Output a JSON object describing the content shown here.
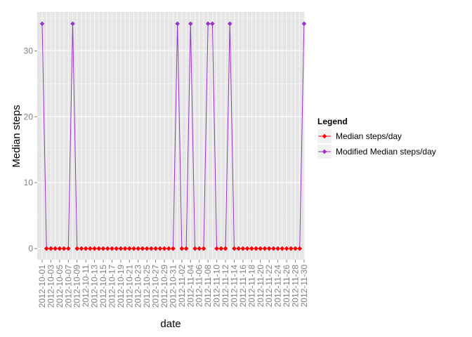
{
  "chart_data": {
    "type": "line",
    "xlabel": "date",
    "ylabel": "Median steps",
    "ylim": [
      -1.7,
      35.9
    ],
    "y_ticks": [
      0,
      10,
      20,
      30
    ],
    "x": [
      "2012-10-01",
      "2012-10-02",
      "2012-10-03",
      "2012-10-04",
      "2012-10-05",
      "2012-10-06",
      "2012-10-07",
      "2012-10-08",
      "2012-10-09",
      "2012-10-10",
      "2012-10-11",
      "2012-10-12",
      "2012-10-13",
      "2012-10-14",
      "2012-10-15",
      "2012-10-16",
      "2012-10-17",
      "2012-10-18",
      "2012-10-19",
      "2012-10-20",
      "2012-10-21",
      "2012-10-22",
      "2012-10-23",
      "2012-10-24",
      "2012-10-25",
      "2012-10-26",
      "2012-10-27",
      "2012-10-28",
      "2012-10-29",
      "2012-10-30",
      "2012-10-31",
      "2012-11-01",
      "2012-11-02",
      "2012-11-03",
      "2012-11-04",
      "2012-11-05",
      "2012-11-06",
      "2012-11-07",
      "2012-11-08",
      "2012-11-09",
      "2012-11-10",
      "2012-11-11",
      "2012-11-12",
      "2012-11-13",
      "2012-11-14",
      "2012-11-15",
      "2012-11-16",
      "2012-11-17",
      "2012-11-18",
      "2012-11-19",
      "2012-11-20",
      "2012-11-21",
      "2012-11-22",
      "2012-11-23",
      "2012-11-24",
      "2012-11-25",
      "2012-11-26",
      "2012-11-27",
      "2012-11-28",
      "2012-11-29",
      "2012-11-30"
    ],
    "x_tick_labels": [
      "2012-10-01",
      "2012-10-03",
      "2012-10-05",
      "2012-10-07",
      "2012-10-09",
      "2012-10-11",
      "2012-10-13",
      "2012-10-15",
      "2012-10-17",
      "2012-10-19",
      "2012-10-21",
      "2012-10-23",
      "2012-10-25",
      "2012-10-27",
      "2012-10-29",
      "2012-10-31",
      "2012-11-02",
      "2012-11-04",
      "2012-11-06",
      "2012-11-08",
      "2012-11-10",
      "2012-11-12",
      "2012-11-14",
      "2012-11-16",
      "2012-11-18",
      "2012-11-20",
      "2012-11-22",
      "2012-11-24",
      "2012-11-26",
      "2012-11-28",
      "2012-11-30"
    ],
    "legend": {
      "title": "Legend",
      "position": "right",
      "entries": [
        "Median steps/day",
        "Modified Median steps/day"
      ]
    },
    "series": [
      {
        "name": "Median steps/day",
        "color": "#ff0000",
        "values": [
          null,
          0,
          0,
          0,
          0,
          0,
          0,
          null,
          0,
          0,
          0,
          0,
          0,
          0,
          0,
          0,
          0,
          0,
          0,
          0,
          0,
          0,
          0,
          0,
          0,
          0,
          0,
          0,
          0,
          0,
          0,
          null,
          0,
          0,
          null,
          0,
          0,
          0,
          null,
          null,
          0,
          0,
          0,
          null,
          0,
          0,
          0,
          0,
          0,
          0,
          0,
          0,
          0,
          0,
          0,
          0,
          0,
          0,
          0,
          0,
          null
        ]
      },
      {
        "name": "Modified Median steps/day",
        "color": "#9932cc",
        "values": [
          34.11,
          0,
          0,
          0,
          0,
          0,
          0,
          34.11,
          0,
          0,
          0,
          0,
          0,
          0,
          0,
          0,
          0,
          0,
          0,
          0,
          0,
          0,
          0,
          0,
          0,
          0,
          0,
          0,
          0,
          0,
          0,
          34.11,
          0,
          0,
          34.11,
          0,
          0,
          0,
          34.11,
          34.11,
          0,
          0,
          0,
          34.11,
          0,
          0,
          0,
          0,
          0,
          0,
          0,
          0,
          0,
          0,
          0,
          0,
          0,
          0,
          0,
          0,
          34.11
        ]
      }
    ],
    "colors": {
      "panel_bg": "#e5e5e5",
      "grid": "#f2f2f2",
      "tick_text": "#7f7f7f"
    }
  }
}
